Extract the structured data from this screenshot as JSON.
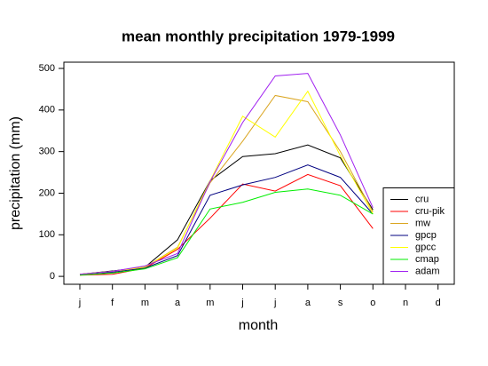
{
  "chart_data": {
    "type": "line",
    "title": "mean monthly precipitation 1979-1999",
    "x_label": "month",
    "y_label": "precipitation (mm)",
    "categories": [
      "j",
      "f",
      "m",
      "a",
      "m",
      "j",
      "j",
      "a",
      "s",
      "o",
      "n",
      "d"
    ],
    "ylim": [
      -19,
      515
    ],
    "yticks": [
      0,
      100,
      200,
      300,
      400,
      500
    ],
    "legend": "bottom-right",
    "series": [
      {
        "name": "cru",
        "color": "#000000",
        "values": [
          5,
          13,
          22,
          88,
          230,
          288,
          295,
          316,
          285,
          160,
          null,
          null
        ]
      },
      {
        "name": "cru-pik",
        "color": "#ff0000",
        "values": [
          3,
          5,
          20,
          65,
          140,
          222,
          205,
          245,
          218,
          115,
          null,
          null
        ]
      },
      {
        "name": "mw",
        "color": "#daa520",
        "values": [
          5,
          12,
          22,
          70,
          225,
          325,
          435,
          420,
          300,
          155,
          null,
          null
        ]
      },
      {
        "name": "gpcp",
        "color": "#000080",
        "values": [
          5,
          10,
          20,
          50,
          195,
          220,
          238,
          268,
          238,
          150,
          null,
          null
        ]
      },
      {
        "name": "gpcc",
        "color": "#ffff00",
        "values": [
          5,
          12,
          22,
          68,
          230,
          385,
          335,
          445,
          290,
          150,
          null,
          null
        ]
      },
      {
        "name": "cmap",
        "color": "#00ee00",
        "values": [
          3,
          8,
          18,
          45,
          162,
          178,
          202,
          210,
          195,
          150,
          null,
          null
        ]
      },
      {
        "name": "adam",
        "color": "#a020f0",
        "values": [
          5,
          12,
          25,
          55,
          228,
          370,
          482,
          488,
          340,
          165,
          null,
          null
        ]
      }
    ]
  }
}
